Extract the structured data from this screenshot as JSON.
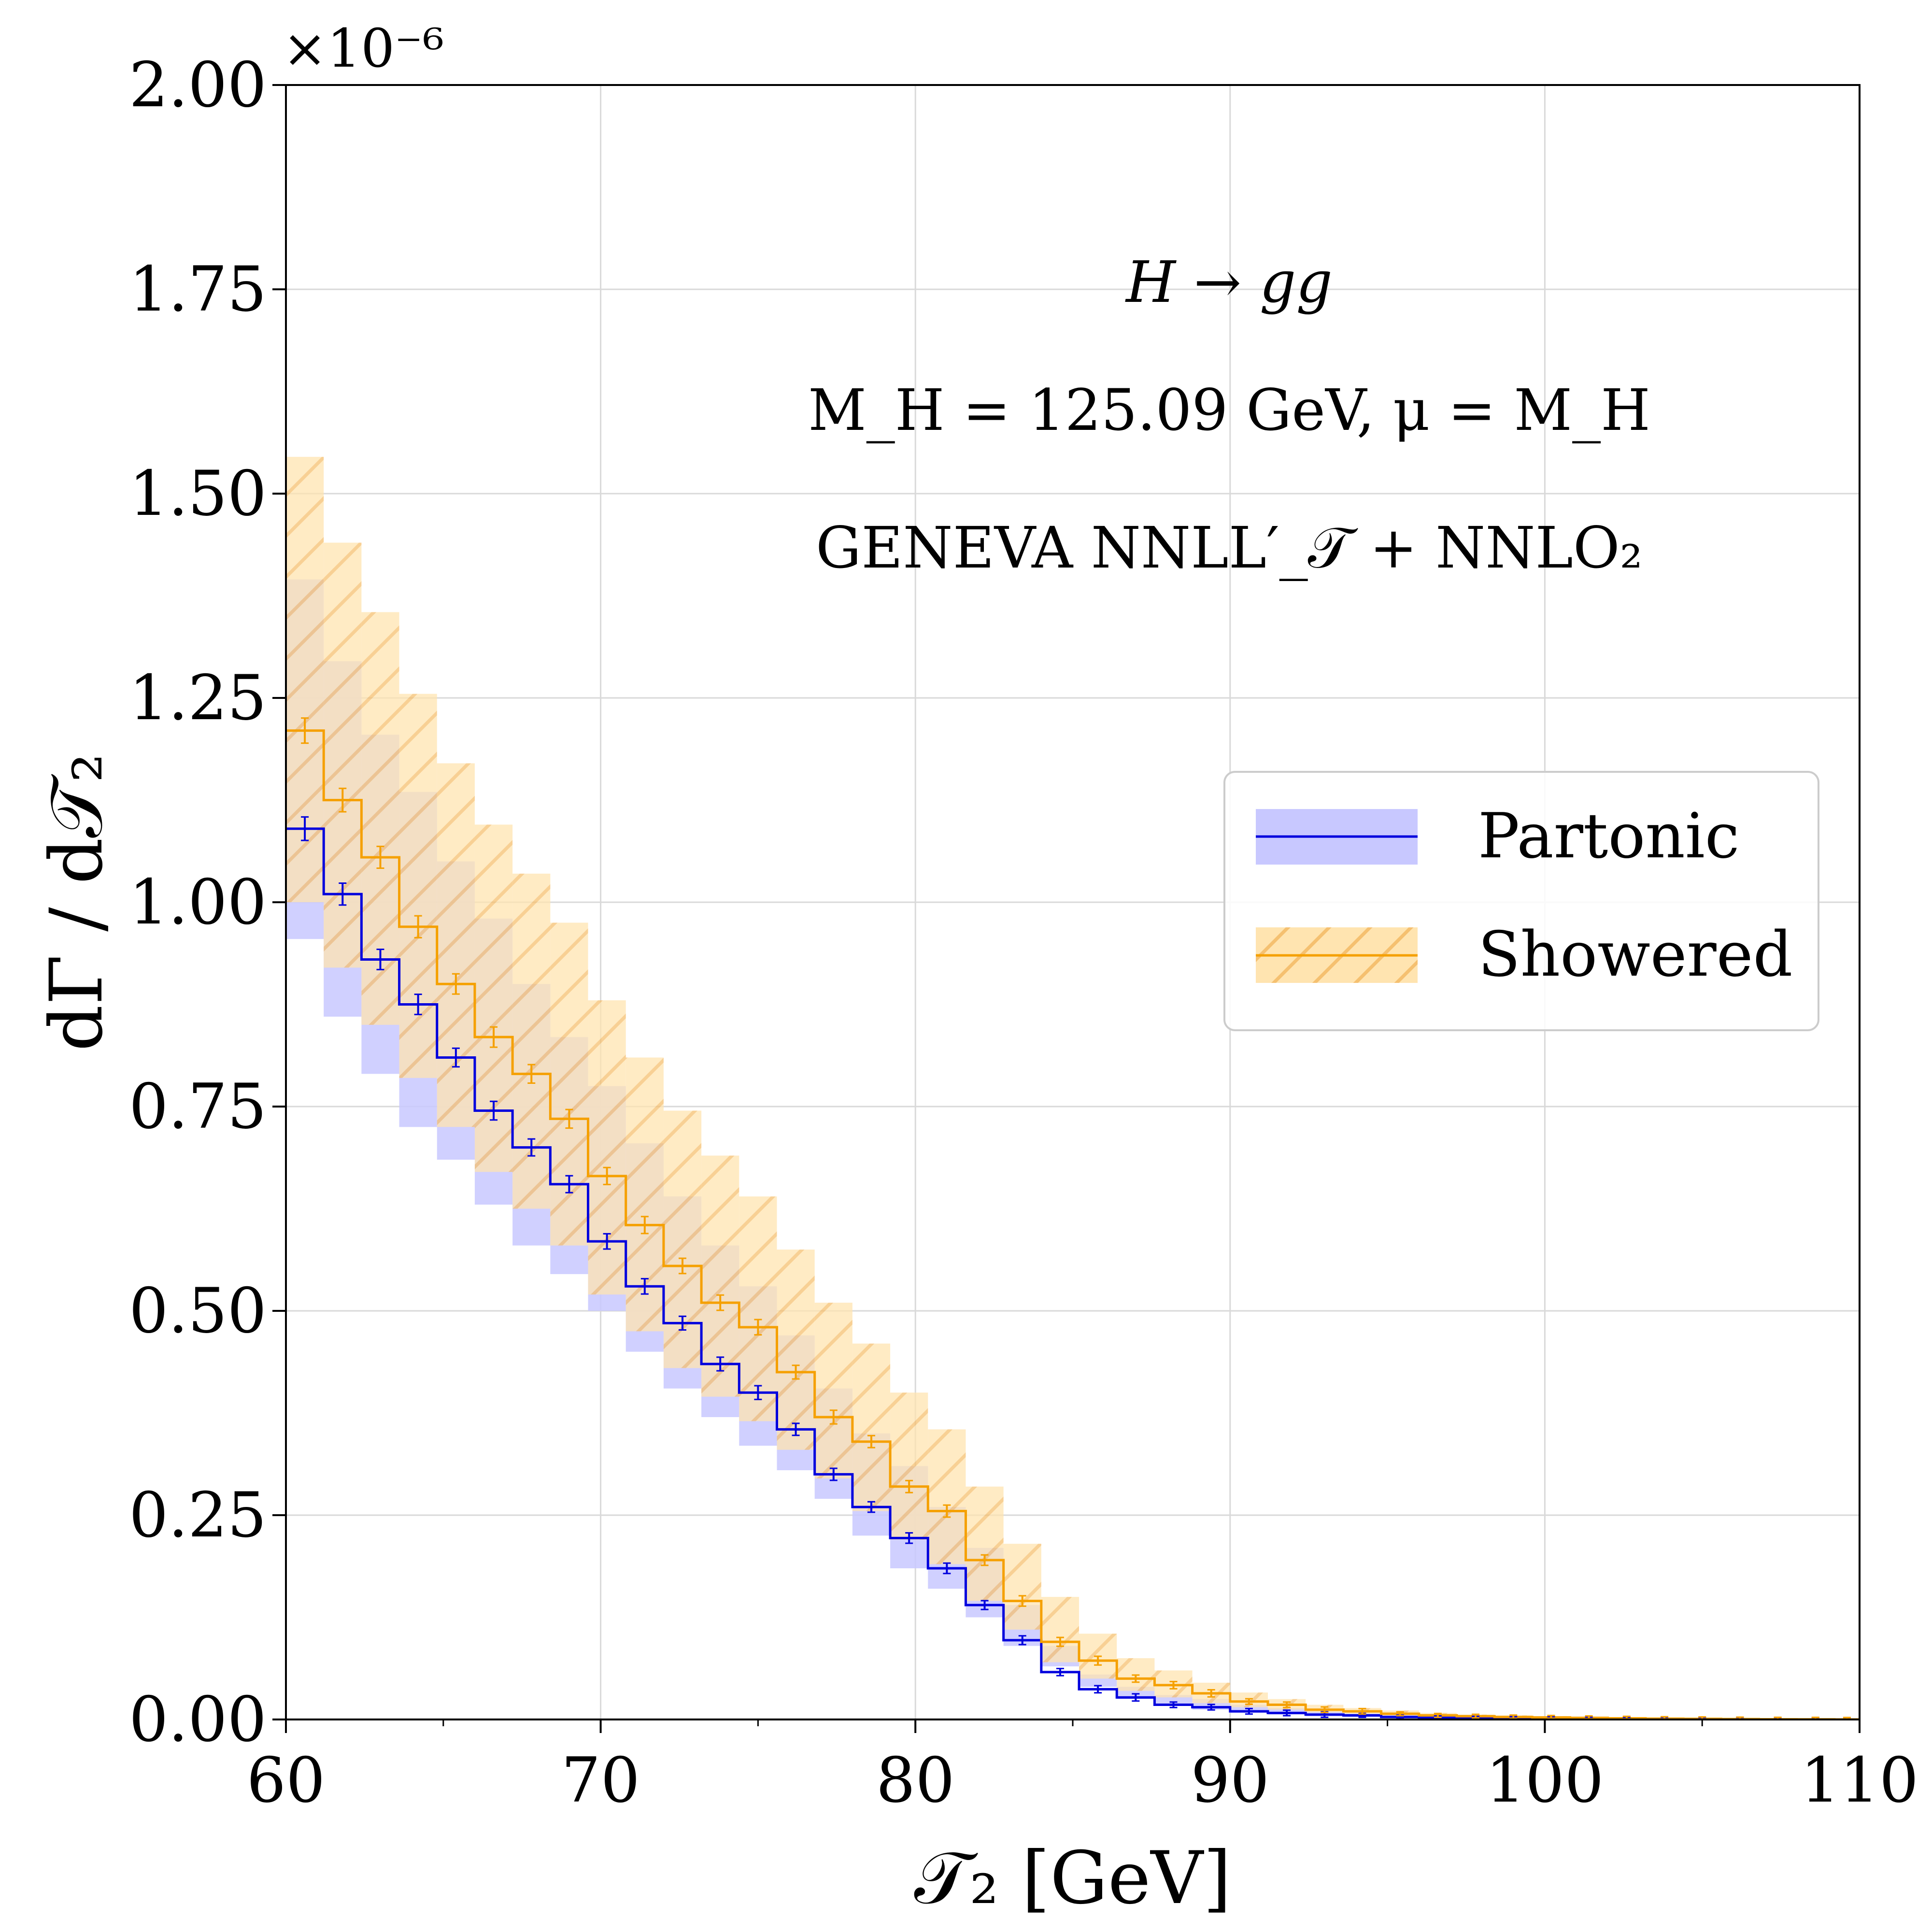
{
  "chart_data": {
    "type": "histogram-step",
    "xlabel": "𝒯₂   [GeV]",
    "ylabel": "dΓ / d𝒯₂",
    "y_scale_label": "×10⁻⁶",
    "xlim": [
      60,
      110
    ],
    "ylim": [
      0.0,
      2.0
    ],
    "xticks": [
      60,
      70,
      80,
      90,
      100,
      110
    ],
    "xtick_labels": [
      "60",
      "70",
      "80",
      "90",
      "100",
      "110"
    ],
    "yticks": [
      0.0,
      0.25,
      0.5,
      0.75,
      1.0,
      1.25,
      1.5,
      1.75,
      2.0
    ],
    "ytick_labels": [
      "0.00",
      "0.25",
      "0.50",
      "0.75",
      "1.00",
      "1.25",
      "1.50",
      "1.75",
      "2.00"
    ],
    "grid": true,
    "legend_position": "center-right",
    "annotations": [
      "H → gg",
      "M_H = 125.09 GeV,  μ = M_H",
      "GENEVA   NNLL′_𝒯 + NNLO₂"
    ],
    "bin_edges": [
      60,
      61.2,
      62.4,
      63.6,
      64.8,
      66,
      67.2,
      68.4,
      69.6,
      70.8,
      72,
      73.2,
      74.4,
      75.6,
      76.8,
      78,
      79.2,
      80.4,
      81.6,
      82.8,
      84,
      85.2,
      86.4,
      87.6,
      88.8,
      90,
      91.2,
      92.4,
      93.6,
      94.8,
      96,
      97.2,
      98.4,
      99.6,
      100.8,
      102,
      103.2,
      104.4,
      105.6,
      106.8,
      108,
      109.2,
      110
    ],
    "series": [
      {
        "name": "Partonic",
        "color": "#0000dd",
        "band_color": "#c8c8ff",
        "band_style": "solid",
        "values": [
          1.09,
          1.01,
          0.93,
          0.875,
          0.81,
          0.745,
          0.7,
          0.655,
          0.585,
          0.53,
          0.485,
          0.435,
          0.4,
          0.355,
          0.3,
          0.26,
          0.222,
          0.185,
          0.14,
          0.097,
          0.058,
          0.037,
          0.027,
          0.018,
          0.015,
          0.01,
          0.008,
          0.006,
          0.005,
          0.003,
          0.002,
          0.0015,
          0.001,
          0.001,
          0.0005,
          0.0003,
          0.0002,
          0.0001,
          0.0001,
          0.0,
          0.0,
          0.0
        ],
        "band_low": [
          0.955,
          0.86,
          0.79,
          0.725,
          0.685,
          0.63,
          0.58,
          0.545,
          0.5,
          0.45,
          0.405,
          0.37,
          0.335,
          0.305,
          0.27,
          0.225,
          0.185,
          0.16,
          0.125,
          0.09,
          0.065,
          0.04,
          0.025,
          0.018,
          0.012,
          0.008,
          0.006,
          0.004,
          0.003,
          0.002,
          0.0015,
          0.001,
          0.0007,
          0.0005,
          0.0003,
          0.0002,
          0.0001,
          0.0001,
          0.0,
          0.0,
          0.0,
          0.0
        ],
        "band_high": [
          1.395,
          1.295,
          1.205,
          1.135,
          1.05,
          0.98,
          0.9,
          0.835,
          0.775,
          0.705,
          0.64,
          0.58,
          0.53,
          0.47,
          0.405,
          0.35,
          0.31,
          0.26,
          0.21,
          0.14,
          0.09,
          0.055,
          0.04,
          0.03,
          0.025,
          0.018,
          0.014,
          0.01,
          0.008,
          0.006,
          0.004,
          0.003,
          0.002,
          0.0015,
          0.001,
          0.0006,
          0.0004,
          0.0002,
          0.0001,
          0.0,
          0.0,
          0.0
        ],
        "errors": [
          0.012,
          0.011,
          0.01,
          0.01,
          0.009,
          0.009,
          0.008,
          0.008,
          0.007,
          0.007,
          0.006,
          0.006,
          0.006,
          0.005,
          0.005,
          0.004,
          0.004,
          0.004,
          0.003,
          0.003,
          0.002,
          0.002,
          0.002,
          0.001,
          0.001,
          0.001,
          0.001,
          0.001,
          0.0,
          0.0,
          0.0,
          0.0,
          0.0,
          0.0,
          0.0,
          0.0,
          0.0,
          0.0,
          0.0,
          0.0,
          0.0,
          0.0
        ]
      },
      {
        "name": "Showered",
        "color": "#f5a000",
        "band_color": "#ffe4b0",
        "band_style": "hatched",
        "values": [
          1.21,
          1.125,
          1.055,
          0.97,
          0.9,
          0.835,
          0.79,
          0.735,
          0.665,
          0.605,
          0.555,
          0.51,
          0.48,
          0.425,
          0.37,
          0.34,
          0.285,
          0.255,
          0.195,
          0.145,
          0.095,
          0.072,
          0.05,
          0.042,
          0.032,
          0.022,
          0.018,
          0.012,
          0.01,
          0.007,
          0.005,
          0.004,
          0.003,
          0.0025,
          0.002,
          0.0015,
          0.001,
          0.0008,
          0.0005,
          0.0003,
          0.0002,
          0.0001
        ],
        "band_low": [
          1.0,
          0.92,
          0.85,
          0.785,
          0.725,
          0.67,
          0.625,
          0.58,
          0.52,
          0.475,
          0.43,
          0.395,
          0.365,
          0.33,
          0.295,
          0.255,
          0.22,
          0.19,
          0.145,
          0.11,
          0.07,
          0.05,
          0.035,
          0.027,
          0.02,
          0.015,
          0.012,
          0.009,
          0.007,
          0.005,
          0.004,
          0.003,
          0.002,
          0.0015,
          0.001,
          0.0008,
          0.0006,
          0.0004,
          0.0003,
          0.0002,
          0.0001,
          0.0
        ],
        "band_high": [
          1.545,
          1.44,
          1.355,
          1.255,
          1.17,
          1.095,
          1.035,
          0.975,
          0.88,
          0.81,
          0.745,
          0.69,
          0.64,
          0.575,
          0.51,
          0.46,
          0.4,
          0.355,
          0.285,
          0.215,
          0.15,
          0.105,
          0.075,
          0.06,
          0.045,
          0.033,
          0.025,
          0.018,
          0.014,
          0.011,
          0.008,
          0.006,
          0.005,
          0.004,
          0.003,
          0.0025,
          0.002,
          0.0015,
          0.001,
          0.0007,
          0.0005,
          0.0003
        ],
        "errors": [
          0.013,
          0.012,
          0.011,
          0.011,
          0.01,
          0.01,
          0.009,
          0.009,
          0.008,
          0.008,
          0.007,
          0.007,
          0.007,
          0.006,
          0.006,
          0.005,
          0.005,
          0.005,
          0.004,
          0.004,
          0.003,
          0.003,
          0.002,
          0.002,
          0.002,
          0.001,
          0.001,
          0.001,
          0.001,
          0.0,
          0.0,
          0.0,
          0.0,
          0.0,
          0.0,
          0.0,
          0.0,
          0.0,
          0.0,
          0.0,
          0.0,
          0.0
        ]
      }
    ]
  }
}
